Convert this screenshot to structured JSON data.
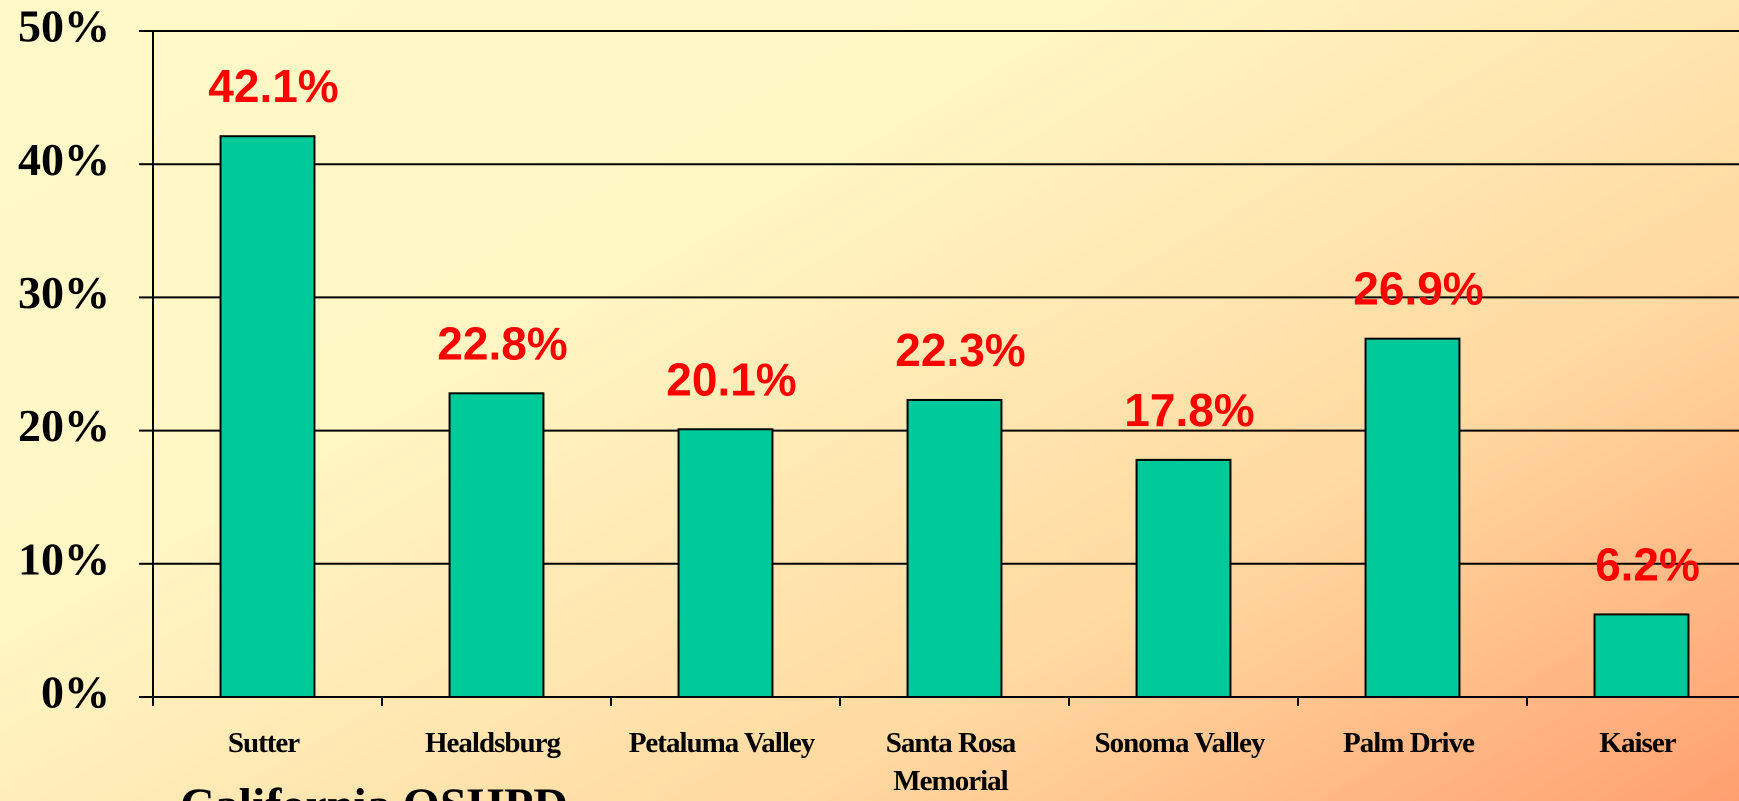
{
  "chart_data": {
    "type": "bar",
    "categories": [
      "Sutter",
      "Healdsburg",
      "Petaluma Valley",
      "Santa Rosa Memorial",
      "Sonoma Valley",
      "Palm Drive",
      "Kaiser"
    ],
    "values": [
      42.1,
      22.8,
      20.1,
      22.3,
      17.8,
      26.9,
      6.2
    ],
    "value_labels": [
      "42.1%",
      "22.8%",
      "20.1%",
      "22.3%",
      "17.8%",
      "26.9%",
      "6.2%"
    ],
    "color": "#00c99a",
    "ylim": [
      0,
      50
    ],
    "yticks": [
      {
        "value": 0,
        "label": "0%"
      },
      {
        "value": 10,
        "label": "10%"
      },
      {
        "value": 20,
        "label": "20%"
      },
      {
        "value": 30,
        "label": "30%"
      },
      {
        "value": 40,
        "label": "40%"
      },
      {
        "value": 50,
        "label": "50%"
      }
    ],
    "grid": true,
    "source": "California OSHPD"
  }
}
